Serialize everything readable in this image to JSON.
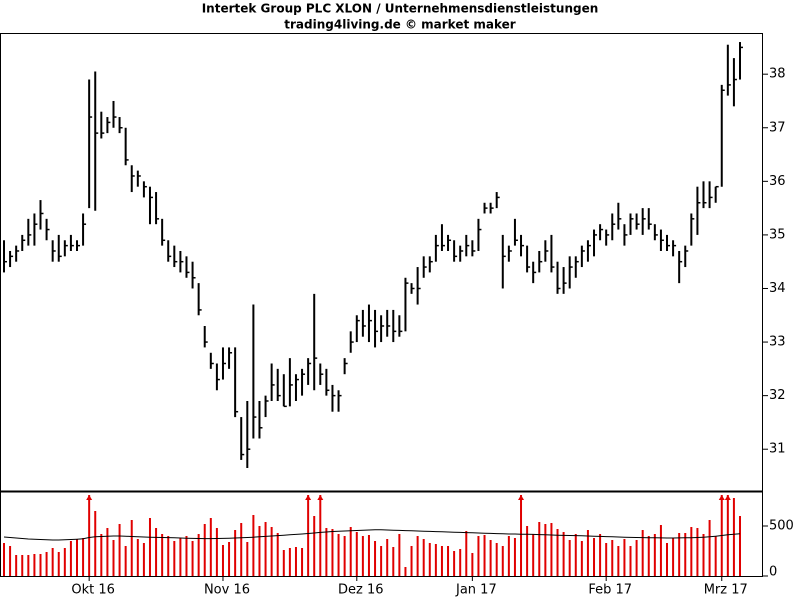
{
  "chart_data": {
    "type": "ohlc",
    "title": "Intertek Group PLC XLON / Unternehmensdienstleistungen",
    "subtitle": "trading4living.de © market maker",
    "categories": [
      null,
      null,
      null,
      null,
      null,
      null,
      null,
      null,
      null,
      null,
      null,
      null,
      null,
      null,
      "Okt 16",
      null,
      null,
      null,
      null,
      null,
      null,
      null,
      null,
      null,
      null,
      null,
      null,
      null,
      null,
      null,
      null,
      null,
      null,
      null,
      null,
      null,
      "Nov 16",
      null,
      null,
      null,
      null,
      null,
      null,
      null,
      null,
      null,
      null,
      null,
      null,
      null,
      null,
      null,
      null,
      null,
      null,
      null,
      null,
      null,
      "Dez 16",
      null,
      null,
      null,
      null,
      null,
      null,
      null,
      null,
      null,
      null,
      null,
      null,
      null,
      null,
      null,
      null,
      null,
      null,
      "Jan 17",
      null,
      null,
      null,
      null,
      null,
      null,
      null,
      null,
      null,
      null,
      null,
      null,
      null,
      null,
      null,
      null,
      null,
      null,
      null,
      null,
      null,
      "Feb 17",
      null,
      null,
      null,
      null,
      null,
      null,
      null,
      null,
      null,
      null,
      null,
      null,
      null,
      null,
      null,
      null,
      null,
      null,
      "Mrz 17",
      null,
      null,
      null
    ],
    "high": [
      34.9,
      34.7,
      34.8,
      35.0,
      35.3,
      35.4,
      35.65,
      35.3,
      34.9,
      35.0,
      34.9,
      35.0,
      34.9,
      35.4,
      37.9,
      38.05,
      37.3,
      37.2,
      37.5,
      37.2,
      37.0,
      36.3,
      36.2,
      36.0,
      35.9,
      35.8,
      35.3,
      34.9,
      34.8,
      34.7,
      34.6,
      34.5,
      34.1,
      33.3,
      32.8,
      32.6,
      32.9,
      32.9,
      32.9,
      31.6,
      31.9,
      33.7,
      31.9,
      32.0,
      32.6,
      32.5,
      32.4,
      32.7,
      32.4,
      32.5,
      32.7,
      33.9,
      32.6,
      32.5,
      32.2,
      32.1,
      32.7,
      33.2,
      33.5,
      33.6,
      33.7,
      33.6,
      33.5,
      33.6,
      33.6,
      33.5,
      34.2,
      34.1,
      34.4,
      34.6,
      34.6,
      35.0,
      35.2,
      35.0,
      34.9,
      34.8,
      35.0,
      34.9,
      35.3,
      35.6,
      35.6,
      35.8,
      35.0,
      34.8,
      35.3,
      35.0,
      34.8,
      34.5,
      34.7,
      34.9,
      35.0,
      34.5,
      34.4,
      34.6,
      34.6,
      34.8,
      34.9,
      35.1,
      35.2,
      35.1,
      35.4,
      35.6,
      35.2,
      35.4,
      35.4,
      35.5,
      35.5,
      35.2,
      35.1,
      35.0,
      34.9,
      34.7,
      34.8,
      35.4,
      35.9,
      36.0,
      36.0,
      35.9,
      37.8,
      38.55,
      38.3,
      38.6
    ],
    "low": [
      34.3,
      34.4,
      34.5,
      34.7,
      34.8,
      34.8,
      35.1,
      34.9,
      34.5,
      34.5,
      34.6,
      34.7,
      34.7,
      34.8,
      35.5,
      35.45,
      36.8,
      36.9,
      37.0,
      36.9,
      36.3,
      35.8,
      35.9,
      35.7,
      35.2,
      35.2,
      34.8,
      34.5,
      34.4,
      34.3,
      34.2,
      34.0,
      33.5,
      32.9,
      32.5,
      32.1,
      32.3,
      32.5,
      31.6,
      30.8,
      30.65,
      31.2,
      31.2,
      31.6,
      31.9,
      31.9,
      31.8,
      31.8,
      31.9,
      32.0,
      32.2,
      32.1,
      32.2,
      32.0,
      31.7,
      31.7,
      32.4,
      32.8,
      33.0,
      33.1,
      33.0,
      32.9,
      33.0,
      33.1,
      33.0,
      33.1,
      33.2,
      33.9,
      33.7,
      34.2,
      34.3,
      34.5,
      34.7,
      34.7,
      34.5,
      34.5,
      34.6,
      34.6,
      34.7,
      35.4,
      35.4,
      35.5,
      34.0,
      34.5,
      34.8,
      34.6,
      34.3,
      34.1,
      34.3,
      34.5,
      34.3,
      33.9,
      33.9,
      34.0,
      34.2,
      34.4,
      34.5,
      34.6,
      34.9,
      34.8,
      34.9,
      35.1,
      34.8,
      35.0,
      35.1,
      35.0,
      35.1,
      34.9,
      34.7,
      34.7,
      34.6,
      34.1,
      34.4,
      34.8,
      35.0,
      35.5,
      35.5,
      35.6,
      35.9,
      37.6,
      37.4,
      37.9
    ],
    "close": [
      34.5,
      34.6,
      34.7,
      34.9,
      35.0,
      35.2,
      35.4,
      35.1,
      34.7,
      34.6,
      34.8,
      34.8,
      34.8,
      35.2,
      37.2,
      36.9,
      36.9,
      37.1,
      37.2,
      37.0,
      36.4,
      36.1,
      36.1,
      35.9,
      35.7,
      35.3,
      34.9,
      34.6,
      34.5,
      34.5,
      34.3,
      34.2,
      33.6,
      33.0,
      32.6,
      32.3,
      32.6,
      32.8,
      31.7,
      30.9,
      31.0,
      31.6,
      31.4,
      31.9,
      32.2,
      32.0,
      31.8,
      32.2,
      32.3,
      32.4,
      32.6,
      32.7,
      32.4,
      32.1,
      32.0,
      32.0,
      32.6,
      33.0,
      33.4,
      33.3,
      33.4,
      33.2,
      33.3,
      33.3,
      33.2,
      33.2,
      34.1,
      34.0,
      34.0,
      34.4,
      34.5,
      34.8,
      34.8,
      34.9,
      34.6,
      34.7,
      34.8,
      34.7,
      35.1,
      35.5,
      35.5,
      35.7,
      34.6,
      34.7,
      34.9,
      34.8,
      34.4,
      34.3,
      34.5,
      34.7,
      34.4,
      34.0,
      34.1,
      34.4,
      34.5,
      34.7,
      34.8,
      35.0,
      35.1,
      35.0,
      35.2,
      35.3,
      35.0,
      35.3,
      35.2,
      35.3,
      35.2,
      35.0,
      34.9,
      34.8,
      34.8,
      34.5,
      34.7,
      35.3,
      35.6,
      35.6,
      35.7,
      35.9,
      37.7,
      37.8,
      37.9,
      38.5
    ],
    "ylim": [
      30.22,
      38.75
    ],
    "yticks": [
      31,
      32,
      33,
      34,
      35,
      36,
      37,
      38
    ],
    "color": "#000000",
    "volume": {
      "color": "#e00000",
      "ma_color": "#000000",
      "values": [
        330,
        300,
        210,
        210,
        210,
        220,
        220,
        240,
        280,
        240,
        280,
        350,
        370,
        380,
        1400,
        650,
        420,
        480,
        360,
        520,
        300,
        560,
        370,
        330,
        580,
        480,
        420,
        400,
        350,
        380,
        400,
        350,
        420,
        520,
        580,
        480,
        310,
        340,
        460,
        530,
        340,
        610,
        500,
        540,
        490,
        430,
        260,
        280,
        290,
        280,
        1100,
        600,
        1300,
        480,
        470,
        420,
        400,
        490,
        440,
        400,
        410,
        350,
        300,
        370,
        290,
        420,
        90,
        300,
        400,
        370,
        330,
        320,
        300,
        300,
        250,
        270,
        450,
        230,
        400,
        410,
        360,
        330,
        300,
        400,
        380,
        1250,
        500,
        420,
        540,
        520,
        530,
        470,
        440,
        360,
        420,
        350,
        460,
        380,
        420,
        330,
        360,
        300,
        370,
        300,
        360,
        460,
        400,
        420,
        510,
        330,
        380,
        430,
        430,
        490,
        480,
        420,
        560,
        400,
        1200,
        1250,
        780,
        600
      ],
      "ma": [
        390,
        385,
        380,
        375,
        370,
        368,
        365,
        362,
        360,
        360,
        362,
        365,
        368,
        372,
        385,
        392,
        395,
        398,
        400,
        400,
        398,
        395,
        392,
        390,
        388,
        386,
        385,
        384,
        382,
        380,
        378,
        376,
        375,
        374,
        374,
        375,
        376,
        378,
        380,
        382,
        385,
        388,
        392,
        396,
        400,
        404,
        408,
        412,
        416,
        420,
        425,
        430,
        436,
        440,
        445,
        448,
        450,
        452,
        455,
        458,
        460,
        462,
        462,
        460,
        458,
        456,
        454,
        452,
        450,
        448,
        446,
        444,
        442,
        440,
        438,
        436,
        434,
        432,
        430,
        428,
        426,
        424,
        422,
        420,
        420,
        418,
        418,
        416,
        414,
        412,
        410,
        408,
        406,
        405,
        404,
        402,
        400,
        398,
        396,
        394,
        392,
        390,
        388,
        386,
        385,
        384,
        383,
        382,
        381,
        380,
        380,
        381,
        382,
        383,
        385,
        388,
        392,
        398,
        405,
        412,
        418,
        422
      ],
      "ylim": [
        0,
        830
      ],
      "yticks": [
        0,
        500
      ]
    }
  }
}
